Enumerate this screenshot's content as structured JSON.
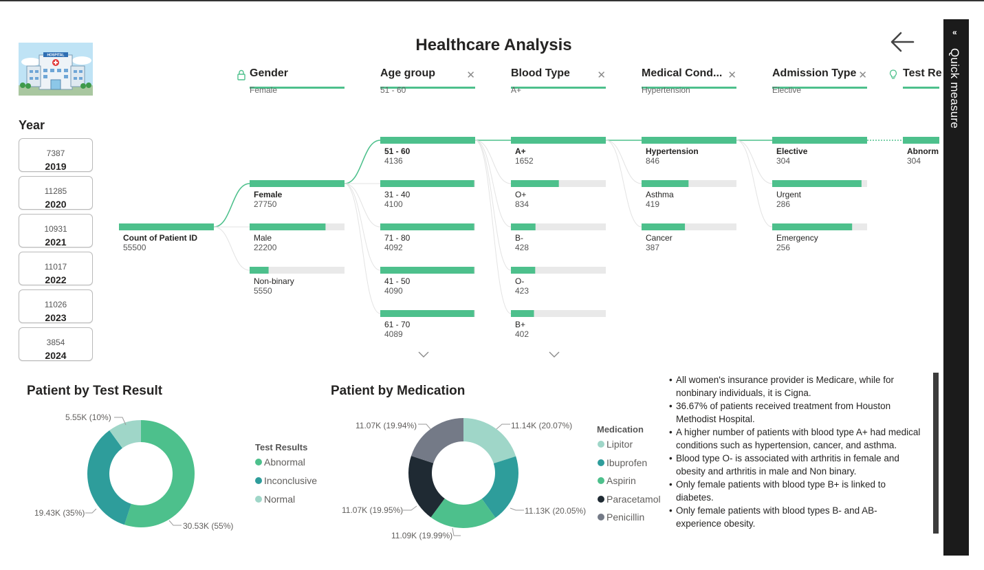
{
  "title": "Healthcare Analysis",
  "logo": {
    "sign_text": "HOSPITAL"
  },
  "quick_measure": {
    "label": "Quick measure",
    "collapse_icon": "double-chevron-left-icon"
  },
  "year_slicer": {
    "title": "Year",
    "items": [
      {
        "count": "7387",
        "year": "2019"
      },
      {
        "count": "11285",
        "year": "2020"
      },
      {
        "count": "10931",
        "year": "2021"
      },
      {
        "count": "11017",
        "year": "2022"
      },
      {
        "count": "11026",
        "year": "2023"
      },
      {
        "count": "3854",
        "year": "2024"
      }
    ]
  },
  "decomposition_tree": {
    "levels": [
      {
        "label": "Gender",
        "selected": "Female",
        "icon": "lock-icon"
      },
      {
        "label": "Age group",
        "selected": "51 - 60"
      },
      {
        "label": "Blood Type",
        "selected": "A+"
      },
      {
        "label": "Medical Cond...",
        "selected": "Hypertension"
      },
      {
        "label": "Admission Type",
        "selected": "Elective"
      },
      {
        "label": "Test Re",
        "icon": "lightbulb-icon"
      }
    ],
    "root": {
      "label": "Count of Patient ID",
      "value": "55500"
    },
    "gender": [
      {
        "label": "Female",
        "value": "27750",
        "fraction": 1.0
      },
      {
        "label": "Male",
        "value": "22200",
        "fraction": 0.8
      },
      {
        "label": "Non-binary",
        "value": "5550",
        "fraction": 0.2
      }
    ],
    "age_group": [
      {
        "label": "51 - 60",
        "value": "4136",
        "fraction": 1.0
      },
      {
        "label": "31 - 40",
        "value": "4100",
        "fraction": 0.99
      },
      {
        "label": "71 - 80",
        "value": "4092",
        "fraction": 0.99
      },
      {
        "label": "41 - 50",
        "value": "4090",
        "fraction": 0.99
      },
      {
        "label": "61 - 70",
        "value": "4089",
        "fraction": 0.99
      }
    ],
    "blood_type": [
      {
        "label": "A+",
        "value": "1652",
        "fraction": 1.0
      },
      {
        "label": "O+",
        "value": "834",
        "fraction": 0.505
      },
      {
        "label": "B-",
        "value": "428",
        "fraction": 0.259
      },
      {
        "label": "O-",
        "value": "423",
        "fraction": 0.256
      },
      {
        "label": "B+",
        "value": "402",
        "fraction": 0.243
      }
    ],
    "medical_condition": [
      {
        "label": "Hypertension",
        "value": "846",
        "fraction": 1.0
      },
      {
        "label": "Asthma",
        "value": "419",
        "fraction": 0.495
      },
      {
        "label": "Cancer",
        "value": "387",
        "fraction": 0.457
      }
    ],
    "admission_type": [
      {
        "label": "Elective",
        "value": "304",
        "fraction": 1.0
      },
      {
        "label": "Urgent",
        "value": "286",
        "fraction": 0.941
      },
      {
        "label": "Emergency",
        "value": "256",
        "fraction": 0.842
      }
    ],
    "test_result": [
      {
        "label": "Abnorm",
        "value": "304",
        "fraction": 1.0
      }
    ]
  },
  "test_result_chart": {
    "title": "Patient by Test Result",
    "legend_title": "Test Results",
    "legend": [
      "Abnormal",
      "Inconclusive",
      "Normal"
    ],
    "labels": {
      "abnormal": "30.53K (55%)",
      "inconclusive": "19.43K (35%)",
      "normal": "5.55K (10%)"
    },
    "colors": {
      "abnormal": "#4dc08c",
      "inconclusive": "#2e9d9b",
      "normal": "#9fd6c8"
    }
  },
  "medication_chart": {
    "title": "Patient by Medication",
    "legend_title": "Medication",
    "legend": [
      "Lipitor",
      "Ibuprofen",
      "Aspirin",
      "Paracetamol",
      "Penicillin"
    ],
    "labels": {
      "lipitor": "11.14K (20.07%)",
      "ibuprofen": "11.13K (20.05%)",
      "aspirin": "11.09K (19.99%)",
      "paracetamol": "11.07K (19.95%)",
      "penicillin": "11.07K (19.94%)"
    },
    "colors": {
      "lipitor": "#9fd6c8",
      "ibuprofen": "#2e9d9b",
      "aspirin": "#4dc08c",
      "paracetamol": "#1f2a33",
      "penicillin": "#747a87"
    }
  },
  "chart_data": [
    {
      "type": "pie",
      "title": "Patient by Test Result",
      "legend_title": "Test Results",
      "categories": [
        "Abnormal",
        "Inconclusive",
        "Normal"
      ],
      "values": [
        30530,
        19430,
        5550
      ],
      "percent": [
        55,
        35,
        10
      ]
    },
    {
      "type": "pie",
      "title": "Patient by Medication",
      "legend_title": "Medication",
      "categories": [
        "Lipitor",
        "Ibuprofen",
        "Aspirin",
        "Paracetamol",
        "Penicillin"
      ],
      "values": [
        11140,
        11130,
        11090,
        11070,
        11070
      ],
      "percent": [
        20.07,
        20.05,
        19.99,
        19.95,
        19.94
      ]
    }
  ],
  "insights": [
    "All women's insurance provider is Medicare, while for nonbinary individuals, it is Cigna.",
    "36.67% of patients received treatment from Houston Methodist Hospital.",
    "A higher number of patients with blood type A+ had medical conditions such as hypertension, cancer, and asthma.",
    "Blood type O- is associated with arthritis in female and obesity and arthritis in male and Non binary.",
    "Only female patients with blood type B+ is linked to diabetes.",
    "Only female patients with blood types B- and AB- experience obesity."
  ]
}
